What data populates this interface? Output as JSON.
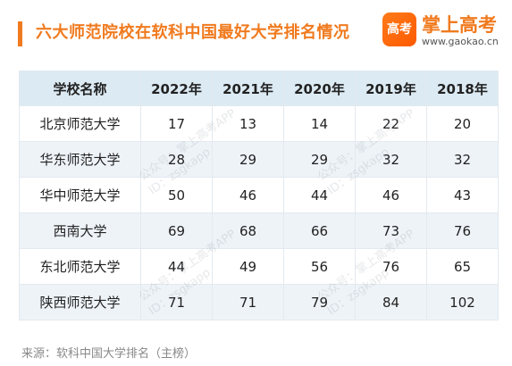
{
  "header": {
    "title": "六大师范院校在软科中国最好大学排名情况",
    "accent_color": "#f07a1e"
  },
  "logo": {
    "badge_text": "高考",
    "name": "掌上高考",
    "url": "www.gaokao.cn"
  },
  "table": {
    "columns": [
      "学校名称",
      "2022年",
      "2021年",
      "2020年",
      "2019年",
      "2018年"
    ],
    "rows": [
      {
        "school": "北京师范大学",
        "values": [
          "17",
          "13",
          "14",
          "22",
          "20"
        ]
      },
      {
        "school": "华东师范大学",
        "values": [
          "28",
          "29",
          "29",
          "32",
          "32"
        ]
      },
      {
        "school": "华中师范大学",
        "values": [
          "50",
          "46",
          "44",
          "46",
          "43"
        ]
      },
      {
        "school": "西南大学",
        "values": [
          "69",
          "68",
          "66",
          "73",
          "76"
        ]
      },
      {
        "school": "东北师范大学",
        "values": [
          "44",
          "49",
          "56",
          "76",
          "65"
        ]
      },
      {
        "school": "陕西师范大学",
        "values": [
          "71",
          "71",
          "79",
          "84",
          "102"
        ]
      }
    ]
  },
  "watermark": {
    "line1": "公众号：掌上高考APP",
    "line2": "ID：zsgkapp"
  },
  "footer": {
    "source": "来源：软科中国大学排名（主榜）"
  }
}
